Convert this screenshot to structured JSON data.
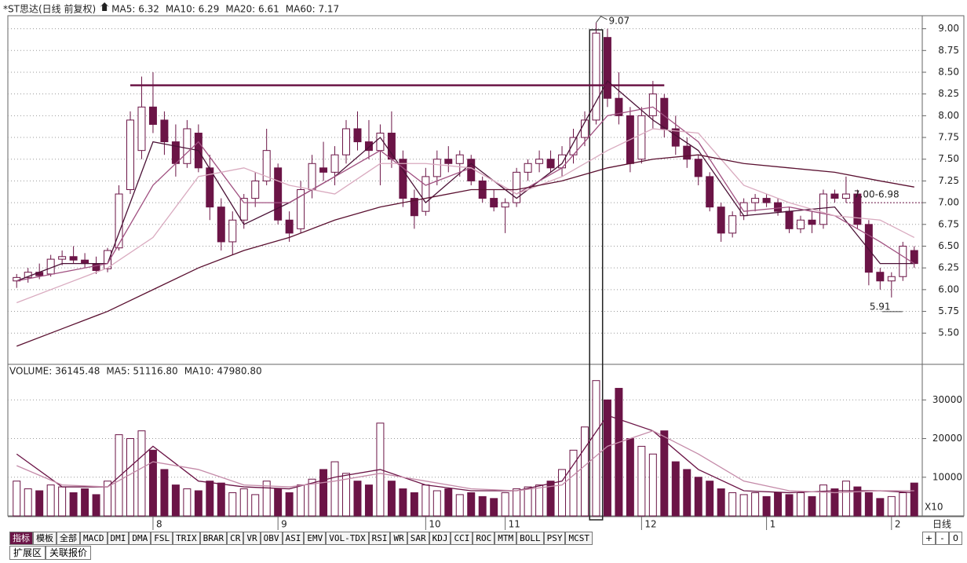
{
  "chart_data": {
    "type": "candlestick",
    "title": "*ST思达(日线 前复权)",
    "categories": [
      null,
      null,
      null,
      null,
      null,
      null,
      null,
      null,
      null,
      null,
      null,
      null,
      "8",
      null,
      null,
      null,
      null,
      null,
      null,
      null,
      null,
      null,
      null,
      "9",
      null,
      null,
      null,
      null,
      null,
      null,
      null,
      null,
      null,
      null,
      null,
      null,
      "10",
      null,
      null,
      null,
      null,
      null,
      null,
      "11",
      null,
      null,
      null,
      null,
      null,
      null,
      null,
      null,
      null,
      null,
      null,
      "12",
      null,
      null,
      null,
      null,
      null,
      null,
      null,
      null,
      null,
      null,
      "1",
      null,
      null,
      null,
      null,
      null,
      null,
      null,
      null,
      null,
      null,
      "2",
      null,
      null
    ],
    "open": [
      6.1,
      6.14,
      6.2,
      6.18,
      6.35,
      6.38,
      6.34,
      6.3,
      6.24,
      6.48,
      7.15,
      7.6,
      8.1,
      7.95,
      7.7,
      7.45,
      7.8,
      7.4,
      6.95,
      6.55,
      6.8,
      7.05,
      7.25,
      7.4,
      6.8,
      6.7,
      7.15,
      7.4,
      7.35,
      7.55,
      7.85,
      7.7,
      7.6,
      7.8,
      7.5,
      7.05,
      6.9,
      7.3,
      7.5,
      7.45,
      7.5,
      7.25,
      7.05,
      6.95,
      7.0,
      7.35,
      7.45,
      7.5,
      7.4,
      7.55,
      7.75,
      7.95,
      8.9,
      8.2,
      8.0,
      7.5,
      8.0,
      8.2,
      7.85,
      7.65,
      7.5,
      7.3,
      6.95,
      6.65,
      6.85,
      7.0,
      7.05,
      7.0,
      6.9,
      6.7,
      6.8,
      6.75,
      7.1,
      7.05,
      7.1,
      6.75,
      6.2,
      6.1,
      6.15,
      6.45
    ],
    "high": [
      6.18,
      6.25,
      6.3,
      6.4,
      6.45,
      6.5,
      6.42,
      6.38,
      6.48,
      7.2,
      8.05,
      8.45,
      8.5,
      8.05,
      7.9,
      7.95,
      7.9,
      7.55,
      7.05,
      6.9,
      7.1,
      7.35,
      7.85,
      7.45,
      6.9,
      7.25,
      7.55,
      7.7,
      7.65,
      7.95,
      8.05,
      7.95,
      7.9,
      8.05,
      7.6,
      7.15,
      7.4,
      7.6,
      7.65,
      7.6,
      7.55,
      7.3,
      7.15,
      7.05,
      7.4,
      7.5,
      7.6,
      7.6,
      7.65,
      7.85,
      8.05,
      9.07,
      9.0,
      8.5,
      8.1,
      8.1,
      8.4,
      8.25,
      8.0,
      7.75,
      7.55,
      7.35,
      7.0,
      6.9,
      7.05,
      7.1,
      7.1,
      7.05,
      6.95,
      6.85,
      6.9,
      7.15,
      7.15,
      7.3,
      7.15,
      6.8,
      6.25,
      6.2,
      6.55,
      6.5
    ],
    "low": [
      6.02,
      6.08,
      6.12,
      6.15,
      6.28,
      6.3,
      6.25,
      6.18,
      6.2,
      6.45,
      7.1,
      7.5,
      7.8,
      7.55,
      7.3,
      7.4,
      7.35,
      6.8,
      6.45,
      6.4,
      6.7,
      6.95,
      7.2,
      6.75,
      6.55,
      6.65,
      7.05,
      7.25,
      7.2,
      7.45,
      7.6,
      7.5,
      7.2,
      7.4,
      6.95,
      6.7,
      6.85,
      7.2,
      7.35,
      7.3,
      7.2,
      7.0,
      6.9,
      6.65,
      6.95,
      7.25,
      7.35,
      7.35,
      7.3,
      7.45,
      7.65,
      7.9,
      8.1,
      7.9,
      7.35,
      7.45,
      7.85,
      7.75,
      7.55,
      7.4,
      7.2,
      6.9,
      6.55,
      6.6,
      6.8,
      6.9,
      6.95,
      6.85,
      6.65,
      6.65,
      6.65,
      6.7,
      7.0,
      7.0,
      6.7,
      6.05,
      6.0,
      5.91,
      6.1,
      6.25
    ],
    "close": [
      6.14,
      6.2,
      6.16,
      6.35,
      6.38,
      6.34,
      6.3,
      6.22,
      6.45,
      7.1,
      7.95,
      8.1,
      7.9,
      7.7,
      7.45,
      7.85,
      7.4,
      6.95,
      6.55,
      6.8,
      7.05,
      7.25,
      7.6,
      6.8,
      6.65,
      7.15,
      7.45,
      7.35,
      7.55,
      7.85,
      7.7,
      7.6,
      7.8,
      7.5,
      7.05,
      6.85,
      7.3,
      7.5,
      7.45,
      7.55,
      7.25,
      7.05,
      6.95,
      7.0,
      7.35,
      7.45,
      7.5,
      7.4,
      7.55,
      7.75,
      7.95,
      8.95,
      8.2,
      8.0,
      7.45,
      8.0,
      8.25,
      7.85,
      7.65,
      7.5,
      7.3,
      6.95,
      6.65,
      6.85,
      7.0,
      7.05,
      7.0,
      6.9,
      6.7,
      6.8,
      6.75,
      7.1,
      7.05,
      7.1,
      6.75,
      6.2,
      6.1,
      6.15,
      6.5,
      6.3
    ],
    "volume": [
      9000,
      7000,
      6500,
      8000,
      7500,
      6000,
      7000,
      5500,
      9000,
      21000,
      20000,
      22000,
      17000,
      12000,
      8000,
      7000,
      6500,
      9000,
      8500,
      6000,
      7000,
      5500,
      9000,
      7000,
      6000,
      8000,
      9500,
      12000,
      14000,
      11000,
      9000,
      8000,
      24000,
      9000,
      7000,
      6000,
      8000,
      6500,
      7000,
      5500,
      6000,
      5000,
      4500,
      6000,
      7000,
      7500,
      8000,
      9000,
      12000,
      17000,
      23000,
      35000,
      30000,
      33000,
      20000,
      18000,
      16000,
      22000,
      14000,
      12000,
      10000,
      9000,
      7000,
      6000,
      5500,
      6000,
      5000,
      6000,
      5500,
      6000,
      5000,
      8000,
      7000,
      9000,
      7500,
      6000,
      4500,
      5000,
      6000,
      8500
    ],
    "up_color": "#ffffff",
    "down_color": "#6b1446",
    "ylim": [
      5.15,
      9.15
    ],
    "yticks": [
      {
        "value": 9.0,
        "label": "9.00"
      },
      {
        "value": 8.75,
        "label": "8.75"
      },
      {
        "value": 8.5,
        "label": "8.50"
      },
      {
        "value": 8.25,
        "label": "8.25"
      },
      {
        "value": 8.0,
        "label": "8.00"
      },
      {
        "value": 7.75,
        "label": "7.75"
      },
      {
        "value": 7.5,
        "label": "7.50"
      },
      {
        "value": 7.25,
        "label": "7.25"
      },
      {
        "value": 7.0,
        "label": "7.00"
      },
      {
        "value": 6.75,
        "label": "6.75"
      },
      {
        "value": 6.5,
        "label": "6.50"
      },
      {
        "value": 6.25,
        "label": "6.25"
      },
      {
        "value": 6.0,
        "label": "6.00"
      },
      {
        "value": 5.75,
        "label": "5.75"
      },
      {
        "value": 5.5,
        "label": "5.50"
      }
    ],
    "y2lim": [
      0,
      39000
    ],
    "y2ticks": [
      10000,
      20000,
      30000
    ],
    "grid": true,
    "ma_lines": [
      {
        "label": "MA5: 6.32",
        "color": "#4a1035",
        "x": [
          0,
          4,
          8,
          12,
          16,
          20,
          24,
          28,
          32,
          36,
          40,
          44,
          48,
          52,
          56,
          60,
          64,
          68,
          72,
          76,
          79
        ],
        "values": [
          6.1,
          6.3,
          6.3,
          7.7,
          7.6,
          6.75,
          7.0,
          7.3,
          7.75,
          7.0,
          7.45,
          7.05,
          7.45,
          8.4,
          7.95,
          7.6,
          6.85,
          6.9,
          6.95,
          6.3,
          6.3
        ]
      },
      {
        "label": "MA10: 6.29",
        "color": "#a05080",
        "x": [
          0,
          4,
          8,
          12,
          16,
          20,
          24,
          28,
          32,
          36,
          40,
          44,
          48,
          52,
          56,
          60,
          64,
          68,
          72,
          76,
          79
        ],
        "values": [
          6.1,
          6.2,
          6.3,
          7.2,
          7.7,
          7.0,
          7.0,
          7.3,
          7.6,
          7.2,
          7.4,
          7.1,
          7.4,
          8.0,
          8.1,
          7.7,
          6.9,
          6.95,
          6.85,
          6.55,
          6.3
        ]
      },
      {
        "label": "MA20: 6.61",
        "color": "#d9aabf",
        "x": [
          0,
          4,
          8,
          12,
          16,
          20,
          24,
          28,
          32,
          36,
          40,
          44,
          48,
          52,
          56,
          60,
          64,
          68,
          72,
          76,
          79
        ],
        "values": [
          5.85,
          6.05,
          6.25,
          6.6,
          7.3,
          7.4,
          7.2,
          7.1,
          7.45,
          7.45,
          7.4,
          7.1,
          7.3,
          7.6,
          7.85,
          7.8,
          7.2,
          7.0,
          6.85,
          6.8,
          6.6
        ]
      },
      {
        "label": "MA60: 7.17",
        "color": "#5a1030",
        "x": [
          0,
          4,
          8,
          12,
          16,
          20,
          24,
          28,
          32,
          36,
          40,
          44,
          48,
          52,
          56,
          60,
          64,
          68,
          72,
          76,
          79
        ],
        "values": [
          5.35,
          5.55,
          5.75,
          6.0,
          6.25,
          6.45,
          6.6,
          6.8,
          6.95,
          7.05,
          7.15,
          7.15,
          7.25,
          7.4,
          7.5,
          7.55,
          7.45,
          7.4,
          7.35,
          7.25,
          7.18
        ]
      }
    ],
    "volume_label": "VOLUME: 36145.48",
    "volume_ma_lines": [
      {
        "label": "MA5: 51116.80",
        "color": "#6b1446",
        "x": [
          0,
          4,
          8,
          12,
          16,
          20,
          24,
          28,
          32,
          36,
          40,
          44,
          48,
          52,
          56,
          60,
          64,
          68,
          72,
          76,
          79
        ],
        "values": [
          16000,
          7500,
          7500,
          18000,
          9000,
          7500,
          7000,
          10000,
          12000,
          8000,
          6500,
          6500,
          9000,
          26000,
          22000,
          12000,
          6500,
          6000,
          6500,
          6500,
          6000
        ]
      },
      {
        "label": "MA10: 47980.80",
        "color": "#c48aa8",
        "x": [
          0,
          4,
          8,
          12,
          16,
          20,
          24,
          28,
          32,
          36,
          40,
          44,
          48,
          52,
          56,
          60,
          64,
          68,
          72,
          76,
          79
        ],
        "values": [
          13000,
          8000,
          7500,
          14000,
          12000,
          8000,
          7500,
          9000,
          11000,
          9000,
          7000,
          6500,
          8000,
          18000,
          22000,
          16000,
          9000,
          6500,
          6000,
          6500,
          6500
        ]
      }
    ],
    "reference_lines": [
      {
        "value": 8.35,
        "start": 10,
        "end": 57,
        "style": "solid"
      },
      {
        "value": 7.0,
        "start": 73,
        "style": "dotted",
        "label": "7.00-6.98"
      }
    ],
    "annotations": [
      {
        "label": "9.07",
        "value": 9.07,
        "index": 51
      },
      {
        "label": "5.91",
        "value": 5.91,
        "index": 77
      }
    ],
    "highlight_index": 51,
    "volume_unit": "X10",
    "period": "日线",
    "tabs": [
      "指标",
      "模板",
      "全部",
      "MACD",
      "DMI",
      "DMA",
      "FSL",
      "TRIX",
      "BRAR",
      "CR",
      "VR",
      "OBV",
      "ASI",
      "EMV",
      "VOL-TDX",
      "RSI",
      "WR",
      "SAR",
      "KDJ",
      "CCI",
      "ROC",
      "MTM",
      "BOLL",
      "PSY",
      "MCST"
    ],
    "zoom_buttons": [
      "+",
      "-",
      "0"
    ],
    "bottom_tabs": [
      "扩展区",
      "关联报价"
    ]
  }
}
